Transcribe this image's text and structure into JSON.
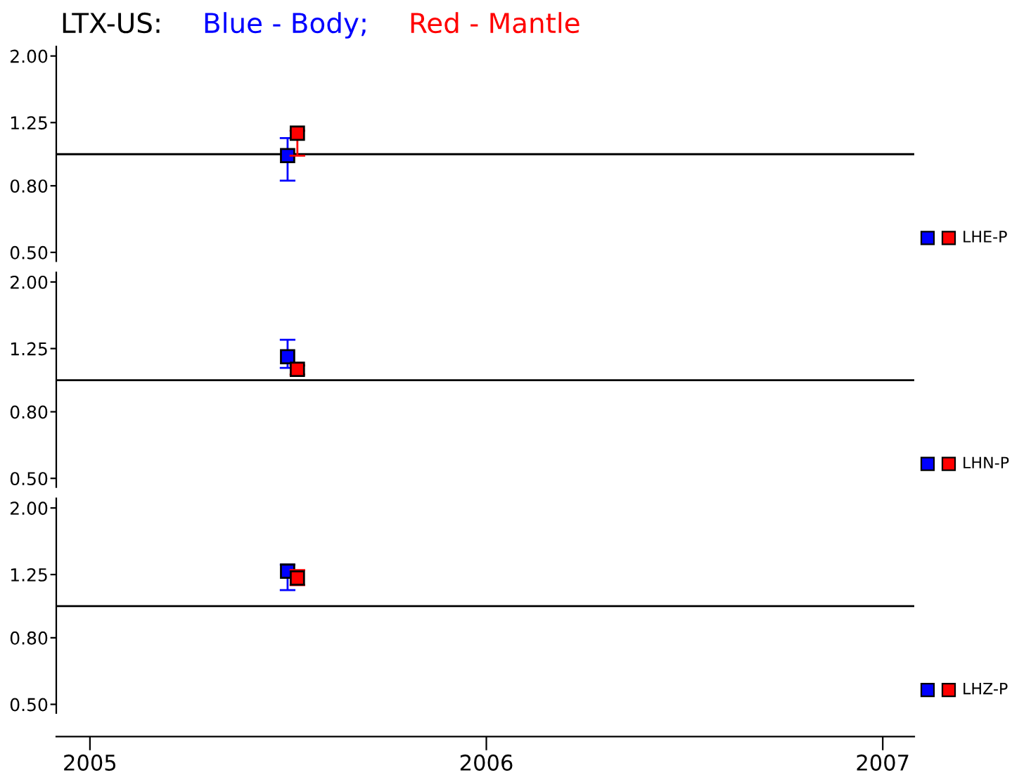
{
  "chart_data": [
    {
      "type": "scatter",
      "title": "LTX-US:",
      "legend": "top left",
      "annotations": [
        "LHZ-P"
      ],
      "marker": "square",
      "log": true,
      "ylim": [
        0.47,
        2.14
      ],
      "yticks": [
        {
          "value": 0.5,
          "label": "0.50"
        },
        {
          "value": 0.8,
          "label": "0.80"
        },
        {
          "value": 1.25,
          "label": "1.25"
        },
        {
          "value": 2,
          "label": "2.00"
        }
      ],
      "xlim": [
        "2004-12-01",
        "2007-01-30"
      ],
      "xticks": [
        "2005",
        "2006",
        "2007"
      ],
      "tick_labels": "y",
      "ref_lines": [
        {
          "axis": "y",
          "value": 1,
          "color": "#000000"
        }
      ],
      "series": [
        {
          "name": "Blue - Body;",
          "color": "#0000ff",
          "x": [
            "2005-07-02"
          ],
          "values": [
            0.99
          ],
          "errors": [
            [
              0.83,
              1.12
            ]
          ]
        },
        {
          "name": "Red - Mantle",
          "color": "#ff0000",
          "x": [
            "2005-07-11"
          ],
          "values": [
            1.16
          ],
          "errors": [
            [
              0.99,
              1.18
            ]
          ]
        }
      ]
    },
    {
      "type": "scatter",
      "annotations": [
        "LHN-P"
      ],
      "marker": "square",
      "log": true,
      "ylim": [
        0.47,
        2.14
      ],
      "yticks": [
        {
          "value": 0.5,
          "label": "0.50"
        },
        {
          "value": 0.8,
          "label": "0.80"
        },
        {
          "value": 1.25,
          "label": "1.25"
        },
        {
          "value": 2,
          "label": "2.00"
        }
      ],
      "xlim": [
        "2004-12-01",
        "2007-01-30"
      ],
      "xticks": [
        "2005",
        "2006",
        "2007"
      ],
      "tick_labels": "y",
      "ref_lines": [
        {
          "axis": "y",
          "value": 1,
          "color": "#000000"
        }
      ],
      "series": [
        {
          "color": "#0000ff",
          "x": [
            "2005-07-02"
          ],
          "values": [
            1.18
          ],
          "errors": [
            [
              1.09,
              1.33
            ]
          ]
        },
        {
          "color": "#ff0000",
          "x": [
            "2005-07-11"
          ],
          "values": [
            1.08
          ],
          "errors": [
            [
              1.04,
              1.11
            ]
          ]
        }
      ]
    },
    {
      "type": "scatter",
      "annotations": [
        "LHE-P"
      ],
      "marker": "square",
      "log": true,
      "ylim": [
        0.47,
        2.14
      ],
      "yticks": [
        {
          "value": 0.5,
          "label": "0.50"
        },
        {
          "value": 0.8,
          "label": "0.80"
        },
        {
          "value": 1.25,
          "label": "1.25"
        },
        {
          "value": 2,
          "label": "2.00"
        }
      ],
      "xlim": [
        "2004-12-01",
        "2007-01-30"
      ],
      "xticks": [
        "2005",
        "2006",
        "2007"
      ],
      "ref_lines": [
        {
          "axis": "y",
          "value": 1,
          "color": "#000000"
        }
      ],
      "series": [
        {
          "color": "#0000ff",
          "x": [
            "2005-07-02"
          ],
          "values": [
            1.28
          ],
          "errors": [
            [
              1.12,
              1.34
            ]
          ]
        },
        {
          "color": "#ff0000",
          "x": [
            "2005-07-11"
          ],
          "values": [
            1.22
          ],
          "errors": [
            [
              1.16,
              1.29
            ]
          ]
        }
      ]
    }
  ]
}
